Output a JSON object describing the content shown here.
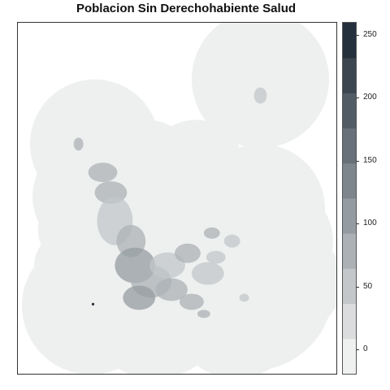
{
  "title": "Poblacion Sin Derechohabiente Salud",
  "legend": {
    "ticks": [
      "0",
      "50",
      "100",
      "150",
      "200",
      "250"
    ],
    "tick_values": [
      0,
      50,
      100,
      150,
      200,
      250
    ],
    "range": [
      -20,
      260
    ],
    "colors": [
      "#eff0f0",
      "#dadcdd",
      "#c3c7c9",
      "#acb1b5",
      "#959ca1",
      "#7e868d",
      "#687179",
      "#525c65",
      "#3c4651",
      "#25303d"
    ]
  },
  "map": {
    "background_color": "#eef0ef",
    "hotspot_colors": [
      "#c3c7c9",
      "#acb1b5",
      "#959ca1"
    ]
  }
}
